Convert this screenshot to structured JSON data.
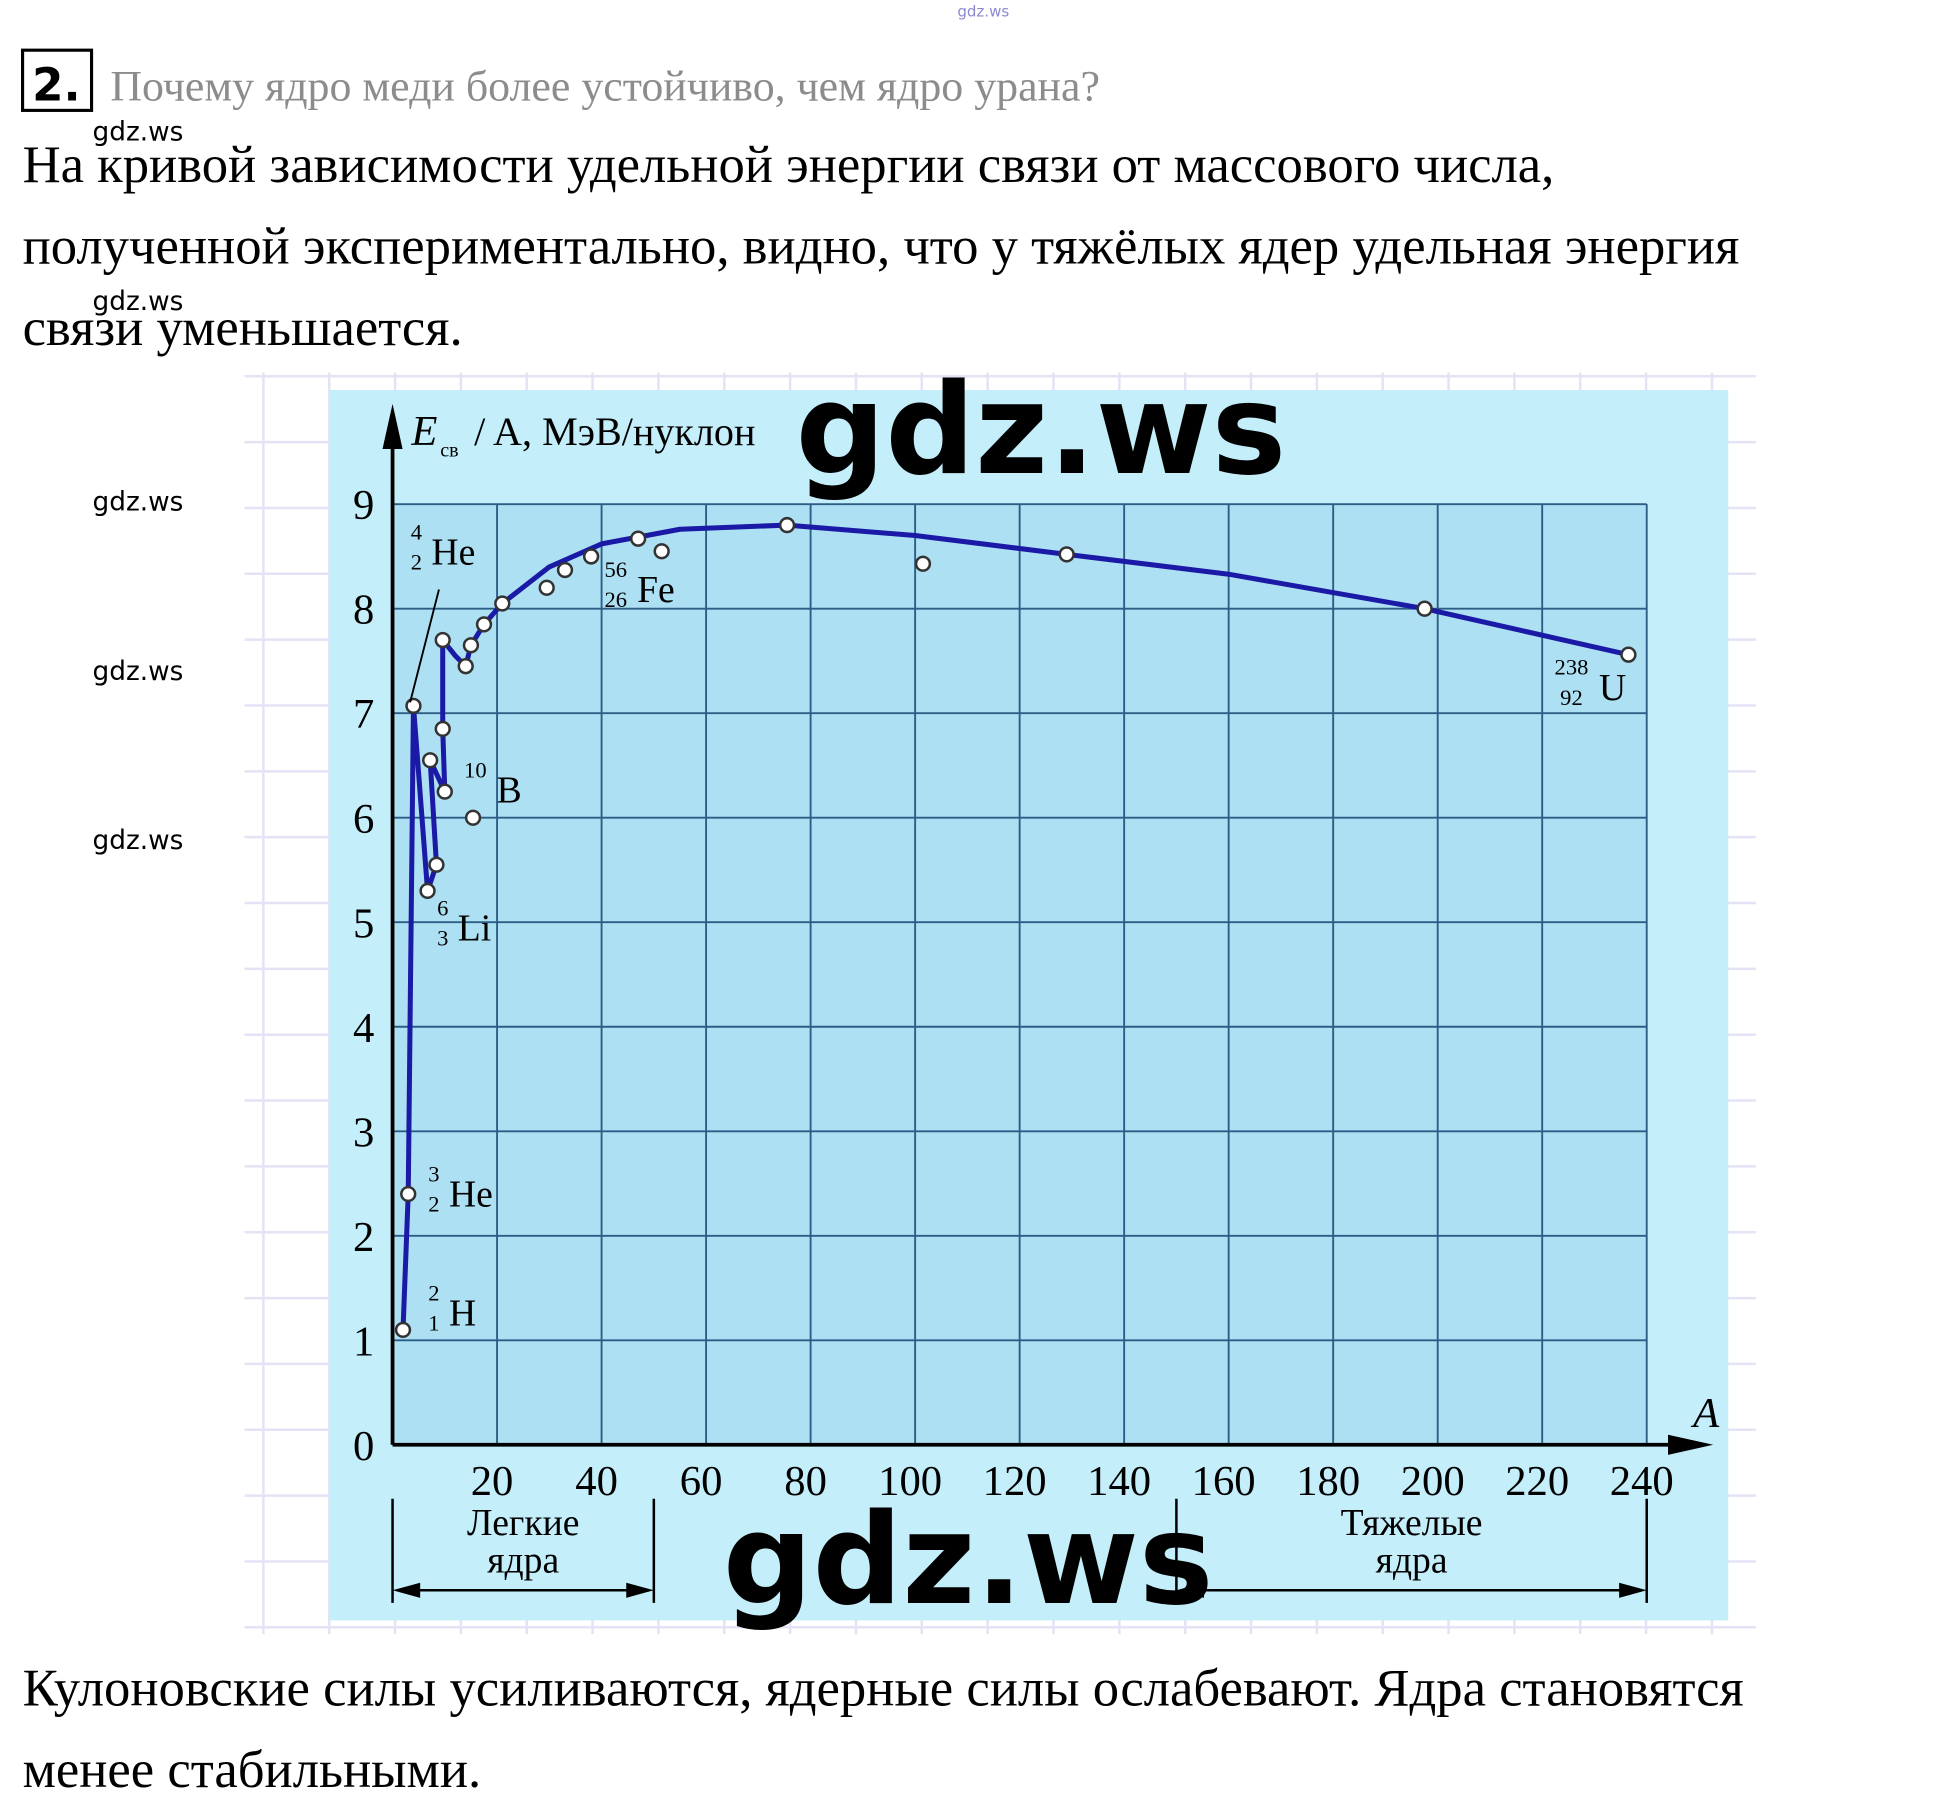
{
  "watermark_top": "gdz.ws",
  "question": {
    "number": "2.",
    "text": "Почему ядро меди более устойчиво, чем ядро урана?"
  },
  "answer_lines": [
    "На кривой зависимости удельной энергии связи от массового числа,",
    "полученной экспериментально, видно, что у тяжёлых ядер удельная энергия",
    "связи уменьшается."
  ],
  "watermarks_small": [
    "gdz.ws",
    "gdz.ws",
    "gdz.ws",
    "gdz.ws",
    "gdz.ws"
  ],
  "watermarks_large": [
    "gdz.ws",
    "gdz.ws"
  ],
  "chart_data": {
    "type": "line",
    "ylabel": {
      "symbol": "E",
      "subscript": "св",
      "text": "/ A, МэВ/нуклон"
    },
    "xlabel": "A",
    "xlim": [
      0,
      240
    ],
    "ylim": [
      0,
      9
    ],
    "xticks": [
      20,
      40,
      60,
      80,
      100,
      120,
      140,
      160,
      180,
      200,
      220,
      240
    ],
    "yticks": [
      0,
      1,
      2,
      3,
      4,
      5,
      6,
      7,
      8,
      9
    ],
    "grid": true,
    "series": [
      {
        "color": "#333333",
        "marker": "circle",
        "x": [
          2,
          3,
          4,
          6.7,
          8.4,
          7.2,
          10,
          9.6,
          9.6,
          15.4,
          14,
          15,
          17.5,
          21,
          29.5,
          33,
          38,
          47,
          51.5,
          75.5,
          101.5,
          129,
          197.5,
          236.5
        ],
        "values": [
          1.1,
          2.4,
          7.07,
          5.3,
          5.55,
          6.55,
          6.25,
          6.85,
          7.7,
          6.0,
          7.45,
          7.65,
          7.85,
          8.05,
          8.2,
          8.37,
          8.5,
          8.67,
          8.55,
          8.8,
          8.43,
          8.52,
          8.0,
          7.56
        ]
      },
      {
        "color": "#1a1aa6",
        "x": [
          2,
          3,
          4,
          6.7,
          8.4,
          7.2,
          10,
          9.6,
          9.6,
          12,
          14,
          15,
          17.5,
          21,
          30,
          40,
          55,
          75.5,
          100,
          129,
          160,
          197.5,
          236.5
        ],
        "values": [
          1.1,
          2.4,
          7.07,
          5.3,
          5.55,
          6.55,
          6.25,
          6.85,
          7.7,
          7.55,
          7.45,
          7.65,
          7.85,
          8.05,
          8.4,
          8.62,
          8.76,
          8.8,
          8.7,
          8.52,
          8.33,
          8.0,
          7.56
        ]
      }
    ],
    "annotations": [
      {
        "mass": "4",
        "charge": "2",
        "symbol": "He"
      },
      {
        "mass": "3",
        "charge": "2",
        "symbol": "He"
      },
      {
        "mass": "2",
        "charge": "1",
        "symbol": "H"
      },
      {
        "mass": "6",
        "charge": "3",
        "symbol": "Li"
      },
      {
        "mass": "10",
        "charge": "",
        "symbol": "B"
      },
      {
        "mass": "56",
        "charge": "26",
        "symbol": "Fe"
      },
      {
        "mass": "238",
        "charge": "92",
        "symbol": "U"
      }
    ],
    "groups": [
      {
        "lines": [
          "Легкие",
          "ядра"
        ],
        "range": [
          0,
          50
        ]
      },
      {
        "lines": [
          "Тяжелые",
          "ядра"
        ],
        "range": [
          150,
          240
        ]
      }
    ]
  },
  "conclusion_lines": [
    "Кулоновские силы усиливаются, ядерные силы ослабевают. Ядра становятся",
    "менее стабильными."
  ]
}
